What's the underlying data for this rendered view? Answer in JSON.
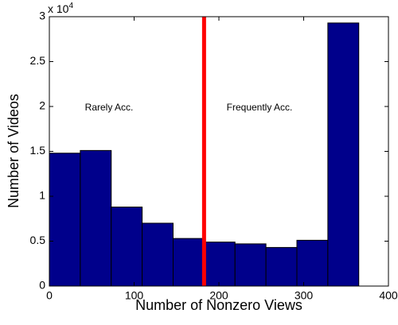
{
  "chart_data": {
    "type": "histogram",
    "xlabel": "Number of Nonzero Views",
    "ylabel": "Number of Videos",
    "y_scale_base": "x 10",
    "y_scale_exponent": "4",
    "bins": [
      0,
      36.5,
      73,
      109.5,
      146,
      182.5,
      219,
      255.5,
      292,
      328.5,
      365
    ],
    "values": [
      1.48,
      1.51,
      0.88,
      0.7,
      0.53,
      0.49,
      0.47,
      0.43,
      0.51,
      2.93
    ],
    "color": "#00008b",
    "xlim": [
      0,
      400
    ],
    "xticks": [
      0,
      100,
      200,
      300,
      400
    ],
    "ylim": [
      0,
      3
    ],
    "yticks": [
      0,
      0.5,
      1,
      1.5,
      2,
      2.5,
      3
    ],
    "vline": {
      "x": 182.5,
      "color": "#ff0000"
    },
    "annotations": [
      "Rarely Acc.",
      "Frequently Acc."
    ]
  }
}
